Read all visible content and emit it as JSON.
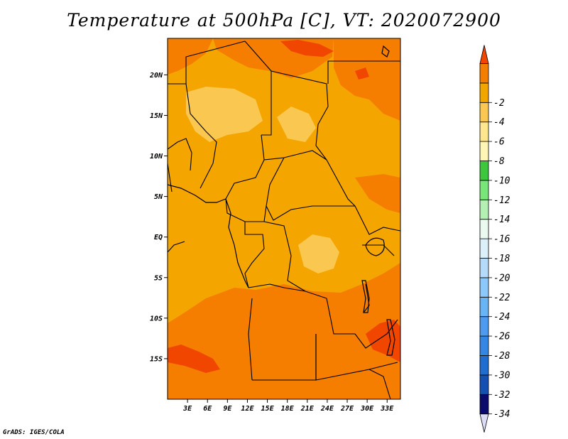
{
  "title": "Temperature at 500hPa [C], VT: 2020072900",
  "credit": "GrADS: IGES/COLA",
  "map": {
    "lon_range": [
      0,
      35
    ],
    "lat_range": [
      -20,
      24.5
    ],
    "x_ticks": [
      {
        "lon": 3,
        "label": "3E"
      },
      {
        "lon": 6,
        "label": "6E"
      },
      {
        "lon": 9,
        "label": "9E"
      },
      {
        "lon": 12,
        "label": "12E"
      },
      {
        "lon": 15,
        "label": "15E"
      },
      {
        "lon": 18,
        "label": "18E"
      },
      {
        "lon": 21,
        "label": "21E"
      },
      {
        "lon": 24,
        "label": "24E"
      },
      {
        "lon": 27,
        "label": "27E"
      },
      {
        "lon": 30,
        "label": "30E"
      },
      {
        "lon": 33,
        "label": "33E"
      }
    ],
    "y_ticks": [
      {
        "lat": 20,
        "label": "20N"
      },
      {
        "lat": 15,
        "label": "15N"
      },
      {
        "lat": 10,
        "label": "10N"
      },
      {
        "lat": 5,
        "label": "5N"
      },
      {
        "lat": 0,
        "label": "EQ"
      },
      {
        "lat": -5,
        "label": "5S"
      },
      {
        "lat": -10,
        "label": "10S"
      },
      {
        "lat": -15,
        "label": "15S"
      }
    ],
    "base_color": "#f5a500"
  },
  "colorbar": {
    "colors": [
      "#dcdcf5",
      "#0a0a6e",
      "#1450b4",
      "#1e6ed2",
      "#3287e6",
      "#4b9bf0",
      "#69b4f5",
      "#8cc8fa",
      "#b4dcfa",
      "#dcf0fa",
      "#ebfaf0",
      "#b4f0b4",
      "#78e678",
      "#3cc83c",
      "#fff5b4",
      "#ffe68c",
      "#fac850",
      "#f5a500",
      "#f57d00",
      "#f04600"
    ],
    "labels": [
      "-34",
      "-32",
      "-30",
      "-28",
      "-26",
      "-24",
      "-22",
      "-20",
      "-18",
      "-16",
      "-14",
      "-12",
      "-10",
      "-8",
      "-6",
      "-4",
      "-2"
    ]
  },
  "regions": [
    {
      "name": "warm-orange",
      "color": "#f57d00"
    },
    {
      "name": "hot-red",
      "color": "#f04600"
    },
    {
      "name": "pale-yellow",
      "color": "#fac850"
    }
  ]
}
